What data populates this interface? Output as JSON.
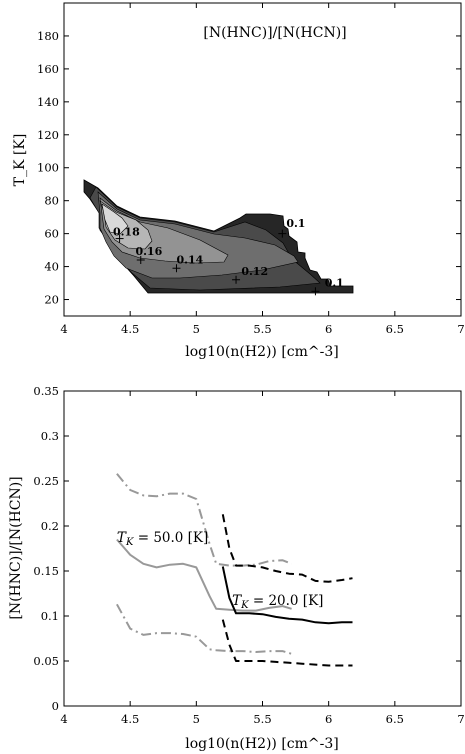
{
  "chart_data": [
    {
      "type": "heatmap",
      "title": "[N(HNC)]/[N(HCN)]",
      "xlabel": "log10(n(H2)) [cm^-3]",
      "ylabel": "T_K [K]",
      "xlim": [
        4,
        7
      ],
      "ylim": [
        10,
        200
      ],
      "xticks": [
        "4",
        "4.5",
        "5",
        "5.5",
        "6",
        "6.5",
        "7"
      ],
      "yticks": [
        "20",
        "40",
        "60",
        "80",
        "100",
        "120",
        "140",
        "160",
        "180"
      ],
      "contour_labels": [
        {
          "text": "0.18",
          "x": 4.37,
          "y": 59
        },
        {
          "text": "0.16",
          "x": 4.54,
          "y": 47
        },
        {
          "text": "0.14",
          "x": 4.85,
          "y": 42
        },
        {
          "text": "0.12",
          "x": 5.34,
          "y": 35
        },
        {
          "text": "0.1",
          "x": 5.68,
          "y": 64
        },
        {
          "text": "0.1",
          "x": 5.97,
          "y": 28
        }
      ],
      "markers": [
        {
          "x": 4.42,
          "y": 57
        },
        {
          "x": 4.58,
          "y": 44
        },
        {
          "x": 4.85,
          "y": 39
        },
        {
          "x": 5.3,
          "y": 32
        },
        {
          "x": 5.65,
          "y": 60
        },
        {
          "x": 5.9,
          "y": 25
        }
      ],
      "levels": [
        {
          "range": "<0.1",
          "color": "#262626"
        },
        {
          "range": "0.1-0.12",
          "color": "#4a4a4a"
        },
        {
          "range": "0.12-0.14",
          "color": "#6e6e6e"
        },
        {
          "range": "0.14-0.16",
          "color": "#939393"
        },
        {
          "range": "0.16-0.18",
          "color": "#b6b6b6"
        },
        {
          "range": ">0.18",
          "color": "#d9d9d9"
        }
      ]
    },
    {
      "type": "line",
      "xlabel": "log10(n(H2)) [cm^-3]",
      "ylabel": "[N(HNC)]/[N(HCN)]",
      "xlim": [
        4,
        7
      ],
      "ylim": [
        0,
        0.35
      ],
      "xticks": [
        "4",
        "4.5",
        "5",
        "5.5",
        "6",
        "6.5",
        "7"
      ],
      "yticks": [
        "0",
        "0.05",
        "0.1",
        "0.15",
        "0.2",
        "0.25",
        "0.3",
        "0.35"
      ],
      "annotations": [
        {
          "text": "T_K = 50.0 [K]",
          "x": 4.4,
          "y": 0.182
        },
        {
          "text": "T_K = 20.0 [K]",
          "x": 5.27,
          "y": 0.112
        }
      ],
      "series": [
        {
          "style": "solid",
          "color": "#999999",
          "x": [
            4.4,
            4.5,
            4.6,
            4.7,
            4.8,
            4.9,
            5.0,
            5.1,
            5.15,
            5.25,
            5.35,
            5.45,
            5.55,
            5.65,
            5.72
          ],
          "y": [
            0.185,
            0.168,
            0.158,
            0.154,
            0.157,
            0.158,
            0.154,
            0.122,
            0.108,
            0.107,
            0.106,
            0.106,
            0.109,
            0.111,
            0.108
          ]
        },
        {
          "style": "dashdot",
          "color": "#999999",
          "x": [
            4.4,
            4.5,
            4.6,
            4.7,
            4.8,
            4.9,
            5.0,
            5.1,
            5.15,
            5.25,
            5.35,
            5.45,
            5.55,
            5.65,
            5.72
          ],
          "y": [
            0.258,
            0.24,
            0.234,
            0.233,
            0.236,
            0.236,
            0.23,
            0.18,
            0.158,
            0.156,
            0.156,
            0.157,
            0.161,
            0.162,
            0.158
          ]
        },
        {
          "style": "dashdot",
          "color": "#999999",
          "x": [
            4.4,
            4.5,
            4.6,
            4.7,
            4.8,
            4.9,
            5.0,
            5.1,
            5.15,
            5.25,
            5.35,
            5.45,
            5.55,
            5.65,
            5.72
          ],
          "y": [
            0.113,
            0.086,
            0.079,
            0.081,
            0.081,
            0.08,
            0.077,
            0.063,
            0.062,
            0.061,
            0.061,
            0.06,
            0.061,
            0.061,
            0.058
          ]
        },
        {
          "style": "solid",
          "color": "#000000",
          "x": [
            5.2,
            5.25,
            5.3,
            5.4,
            5.5,
            5.6,
            5.7,
            5.8,
            5.9,
            6.0,
            6.1,
            6.18
          ],
          "y": [
            0.155,
            0.12,
            0.103,
            0.103,
            0.102,
            0.099,
            0.097,
            0.096,
            0.093,
            0.092,
            0.093,
            0.093
          ]
        },
        {
          "style": "dashed",
          "color": "#000000",
          "x": [
            5.2,
            5.25,
            5.3,
            5.4,
            5.5,
            5.6,
            5.7,
            5.8,
            5.9,
            6.0,
            6.1,
            6.18
          ],
          "y": [
            0.213,
            0.175,
            0.156,
            0.156,
            0.154,
            0.15,
            0.147,
            0.146,
            0.139,
            0.138,
            0.14,
            0.142
          ]
        },
        {
          "style": "dashed",
          "color": "#000000",
          "x": [
            5.2,
            5.25,
            5.3,
            5.4,
            5.5,
            5.6,
            5.7,
            5.8,
            5.9,
            6.0,
            6.1,
            6.18
          ],
          "y": [
            0.096,
            0.068,
            0.05,
            0.05,
            0.05,
            0.049,
            0.048,
            0.047,
            0.046,
            0.045,
            0.045,
            0.045
          ]
        }
      ]
    }
  ]
}
